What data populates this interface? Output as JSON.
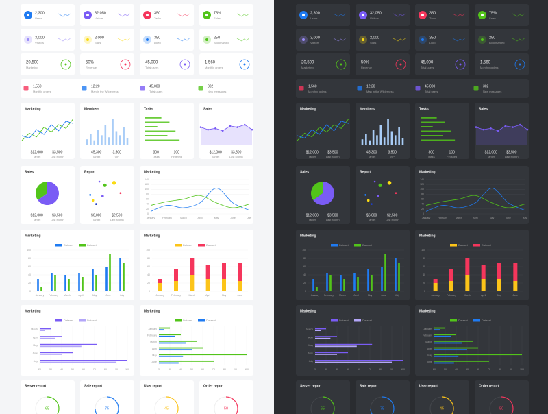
{
  "stat_rows": [
    [
      {
        "value": "2,300",
        "label": "Users",
        "color": "#1f7bf2"
      },
      {
        "value": "32,050",
        "label": "Visitors",
        "color": "#7a5cf5"
      },
      {
        "value": "350",
        "label": "Tasks",
        "color": "#f5365c"
      },
      {
        "value": "75%",
        "label": "Sales",
        "color": "#52c41a"
      }
    ],
    [
      {
        "value": "3,000",
        "label": "Visitors",
        "color": "#9b8cf7"
      },
      {
        "value": "2,000",
        "label": "Stars",
        "color": "#fadb14"
      },
      {
        "value": "350",
        "label": "Liked",
        "color": "#1f7bf2"
      },
      {
        "value": "250",
        "label": "Bookmarked",
        "color": "#52c41a"
      }
    ],
    [
      {
        "value": "20,500",
        "label": "Marketing",
        "color": "#52c41a"
      },
      {
        "value": "50%",
        "label": "Revenue",
        "color": "#f5365c"
      },
      {
        "value": "45,000",
        "label": "Total users",
        "color": "#7a5cf5"
      },
      {
        "value": "1,560",
        "label": "Monthly orders",
        "color": "#1f7bf2"
      }
    ]
  ],
  "summary": [
    {
      "value": "1,560",
      "label": "Monthly orders",
      "color": "#f5365c"
    },
    {
      "value": "12:20",
      "label": "Man in the Wilderness",
      "color": "#1f7bf2"
    },
    {
      "value": "45,000",
      "label": "Total users",
      "color": "#7a5cf5"
    },
    {
      "value": "302",
      "label": "New messages",
      "color": "#52c41a"
    }
  ],
  "marketing": {
    "type": "line",
    "title": "Marketing",
    "ylim": [
      0,
      50
    ],
    "series": [
      {
        "color": "#52c41a",
        "values": [
          8,
          20,
          14,
          30,
          22,
          34,
          28,
          44
        ]
      },
      {
        "color": "#1f7bf2",
        "values": [
          16,
          12,
          26,
          18,
          34,
          24,
          40,
          36
        ]
      }
    ],
    "footer": [
      {
        "value": "$12,000",
        "label": "Target"
      },
      {
        "value": "$3,500",
        "label": "Last Month"
      }
    ]
  },
  "members": {
    "type": "bar",
    "title": "Members",
    "ylim": [
      0,
      60
    ],
    "color": "#a9cdf7",
    "values": [
      12,
      22,
      10,
      30,
      20,
      40,
      16,
      52,
      28,
      20,
      36,
      14
    ],
    "footer": [
      {
        "value": "45,300",
        "label": "Target"
      },
      {
        "value": "3,500",
        "label": "VIP"
      }
    ]
  },
  "tasks": {
    "type": "hbar",
    "title": "Tasks",
    "xlim": [
      0,
      100
    ],
    "color": "#52c41a",
    "values": [
      40,
      60,
      30,
      75,
      55,
      85
    ],
    "footer": [
      {
        "value": "300",
        "label": "Tasks"
      },
      {
        "value": "100",
        "label": "Finished"
      }
    ]
  },
  "sales": {
    "type": "area",
    "title": "Sales",
    "ylim": [
      0,
      50
    ],
    "color": "#7a5cf5",
    "values": [
      30,
      26,
      28,
      24,
      32,
      30,
      34,
      26
    ],
    "footer": [
      {
        "value": "$12,000",
        "label": "Target"
      },
      {
        "value": "$3,500",
        "label": "Last Month"
      }
    ]
  },
  "sales_pie": {
    "type": "pie",
    "title": "Sales",
    "values": [
      35,
      65
    ],
    "colors": [
      "#52c41a",
      "#7a5cf5"
    ],
    "footer": [
      {
        "value": "$12,000",
        "label": "Target"
      },
      {
        "value": "$3,500",
        "label": "Last Month"
      }
    ]
  },
  "report": {
    "type": "scatter",
    "title": "Report",
    "xlim": [
      0,
      10
    ],
    "ylim": [
      0,
      10
    ],
    "x": [
      1,
      1.6,
      2.3,
      3,
      4.2,
      3.7,
      6.2,
      7.6
    ],
    "y": [
      4,
      2.2,
      1,
      8.4,
      7.2,
      3.6,
      8,
      4.6
    ],
    "sizes": [
      1.4,
      1.8,
      1.4,
      1.3,
      2.6,
      1.8,
      2.8,
      1.4
    ],
    "colors": [
      "#1f7bf2",
      "#fadb14",
      "#1f3fc2",
      "#7a5cf5",
      "#52c41a",
      "#7a5cf5",
      "#fadb14",
      "#f5365c"
    ],
    "footer": [
      {
        "value": "$6,000",
        "label": "Target"
      },
      {
        "value": "$2,500",
        "label": "Last Month"
      }
    ]
  },
  "marketing_line": {
    "type": "line",
    "title": "Marketing",
    "categories": [
      "January",
      "February",
      "March",
      "April",
      "May",
      "June",
      "July"
    ],
    "ylim": [
      0,
      140
    ],
    "yticks": [
      0,
      20,
      40,
      60,
      80,
      100,
      120,
      140
    ],
    "grid": true,
    "series": [
      {
        "color": "#1f7bf2",
        "values": [
          10,
          35,
          25,
          45,
          105,
          45,
          15
        ]
      },
      {
        "color": "#52c41a",
        "values": [
          35,
          50,
          60,
          75,
          45,
          25,
          40
        ]
      }
    ]
  },
  "marketing_bars": {
    "type": "bar",
    "title": "Marketing",
    "categories": [
      "January",
      "February",
      "March",
      "April",
      "May",
      "June",
      "July"
    ],
    "ylim": [
      0,
      100
    ],
    "yticks": [
      0,
      20,
      40,
      60,
      80,
      100
    ],
    "grid": true,
    "series": [
      {
        "name": "Dataset",
        "color": "#1f7bf2",
        "values": [
          30,
          45,
          40,
          45,
          55,
          60,
          80
        ]
      },
      {
        "name": "Dataset",
        "color": "#52c41a",
        "values": [
          10,
          40,
          30,
          35,
          40,
          90,
          70
        ]
      }
    ]
  },
  "marketing_stacked": {
    "type": "stacked_bar",
    "title": "Marketing",
    "categories": [
      "January",
      "February",
      "March",
      "April",
      "May",
      "June"
    ],
    "ylim": [
      0,
      100
    ],
    "yticks": [
      0,
      20,
      40,
      60,
      80,
      100
    ],
    "grid": true,
    "series": [
      {
        "name": "Dataset",
        "color": "#fcc419",
        "values": [
          20,
          25,
          40,
          30,
          30,
          25
        ]
      },
      {
        "name": "Dataset",
        "color": "#f5365c",
        "values": [
          10,
          30,
          40,
          35,
          40,
          45
        ]
      }
    ]
  },
  "marketing_hbar": {
    "type": "hbar",
    "title": "Marketing",
    "categories": [
      "March",
      "April",
      "May",
      "June",
      "July"
    ],
    "xlim": [
      20,
      100
    ],
    "xticks": [
      20,
      30,
      40,
      50,
      60,
      70,
      80,
      90,
      100
    ],
    "grid": true,
    "series": [
      {
        "name": "Dataset",
        "color": "#7a5cf5",
        "values": [
          30,
          40,
          72,
          50,
          100
        ]
      },
      {
        "name": "Dataset",
        "color": "#b3a6f8",
        "values": [
          25,
          34,
          58,
          40,
          90
        ]
      }
    ]
  },
  "marketing_hbar2": {
    "type": "hbar",
    "title": "Marketing",
    "categories": [
      "January",
      "February",
      "March",
      "April",
      "May",
      "June"
    ],
    "xlim": [
      20,
      100
    ],
    "xticks": [
      20,
      30,
      40,
      50,
      60,
      70,
      80,
      90,
      100
    ],
    "grid": true,
    "series": [
      {
        "name": "Dataset",
        "color": "#52c41a",
        "values": [
          30,
          40,
          55,
          60,
          100,
          70
        ]
      },
      {
        "name": "Dataset",
        "color": "#1f7bf2",
        "values": [
          25,
          35,
          45,
          50,
          42,
          38
        ]
      }
    ]
  },
  "reports": {
    "lim": [
      0,
      100
    ],
    "items": [
      {
        "title": "Server report",
        "value": 65,
        "color": "#52c41a"
      },
      {
        "title": "Sale report",
        "value": 75,
        "color": "#1f7bf2"
      },
      {
        "title": "User report",
        "value": 45,
        "color": "#fcc419"
      },
      {
        "title": "Order report",
        "value": 50,
        "color": "#f5365c"
      }
    ]
  }
}
